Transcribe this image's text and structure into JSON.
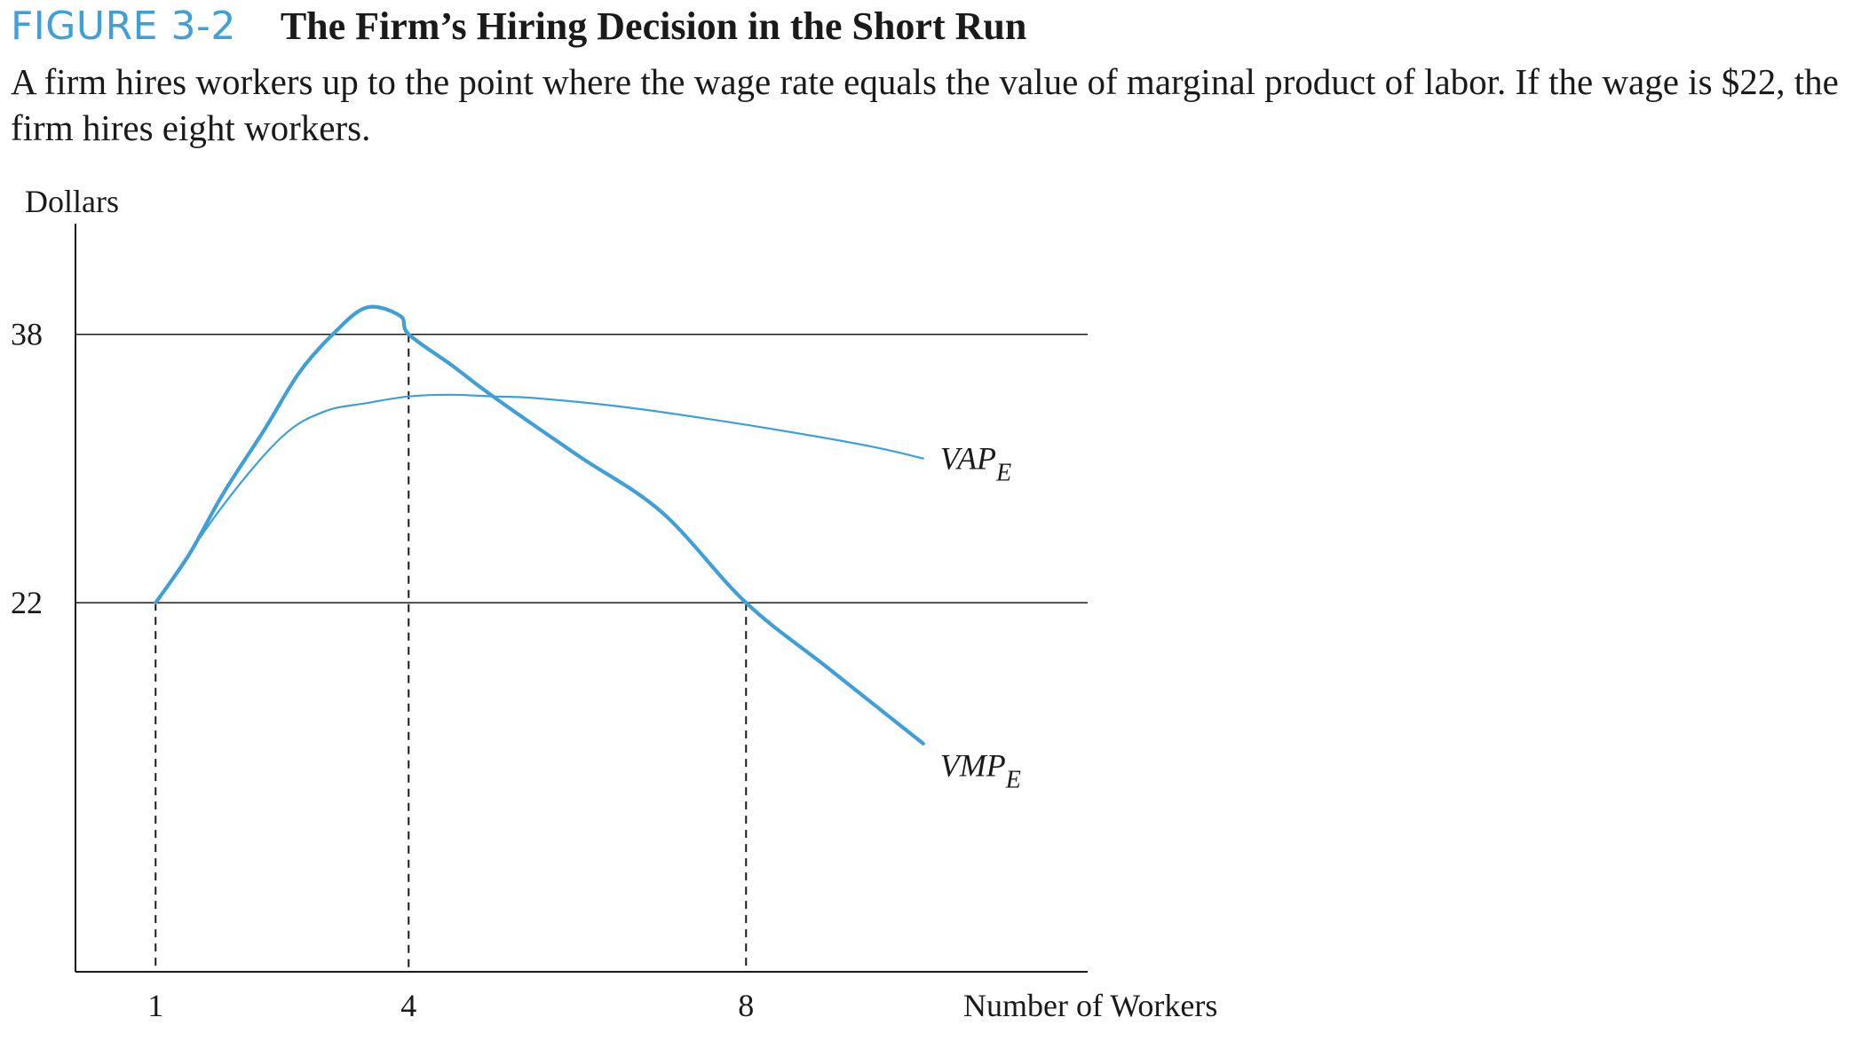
{
  "figure": {
    "label": "FIGURE 3-2",
    "title": "The Firm’s Hiring Decision in the Short Run",
    "caption": "A firm hires workers up to the point where the wage rate equals the value of marginal product of labor. If the wage is $22, the firm hires eight workers."
  },
  "chart_data": {
    "type": "line",
    "ylabel": "Dollars",
    "xlabel": "Number of Workers",
    "x_ticks": [
      {
        "value": 1,
        "label": "1"
      },
      {
        "value": 4,
        "label": "4"
      },
      {
        "value": 8,
        "label": "8"
      }
    ],
    "y_ticks": [
      {
        "value": 22,
        "label": "22"
      },
      {
        "value": 38,
        "label": "38"
      }
    ],
    "xlim": [
      0.05,
      12.05
    ],
    "ylim": [
      0,
      44.6
    ],
    "horizontal_lines": [
      22,
      38
    ],
    "dashed_droplines": [
      {
        "x": 1,
        "y": 22
      },
      {
        "x": 4,
        "y": 38
      },
      {
        "x": 8,
        "y": 22
      }
    ],
    "series": [
      {
        "name": "VAP",
        "subscript": "E",
        "color": "#3f9fd6",
        "points": [
          [
            1,
            22
          ],
          [
            1.8,
            27.8
          ],
          [
            2.5,
            31.9
          ],
          [
            3.0,
            33.4
          ],
          [
            3.5,
            33.9
          ],
          [
            4.0,
            34.3
          ],
          [
            4.5,
            34.4
          ],
          [
            5.0,
            34.3
          ],
          [
            5.5,
            34.2
          ],
          [
            6.5,
            33.7
          ],
          [
            7.5,
            33.0
          ],
          [
            8.5,
            32.2
          ],
          [
            9.5,
            31.3
          ],
          [
            10.1,
            30.6
          ]
        ],
        "label_position": {
          "x": 10.3,
          "y": 30.6
        }
      },
      {
        "name": "VMP",
        "subscript": "E",
        "color": "#3f9fd6",
        "points": [
          [
            1,
            22
          ],
          [
            1.4,
            24.9
          ],
          [
            1.8,
            28.5
          ],
          [
            2.3,
            32.4
          ],
          [
            2.7,
            35.7
          ],
          [
            3.1,
            38.0
          ],
          [
            3.5,
            39.6
          ],
          [
            3.9,
            39.1
          ],
          [
            4.0,
            38.0
          ],
          [
            4.5,
            36.2
          ],
          [
            5.0,
            34.3
          ],
          [
            6.0,
            30.8
          ],
          [
            7.0,
            27.4
          ],
          [
            8.0,
            22.0
          ],
          [
            9.0,
            18.0
          ],
          [
            10.1,
            13.6
          ]
        ],
        "label_position": {
          "x": 10.3,
          "y": 12.3
        }
      }
    ]
  }
}
